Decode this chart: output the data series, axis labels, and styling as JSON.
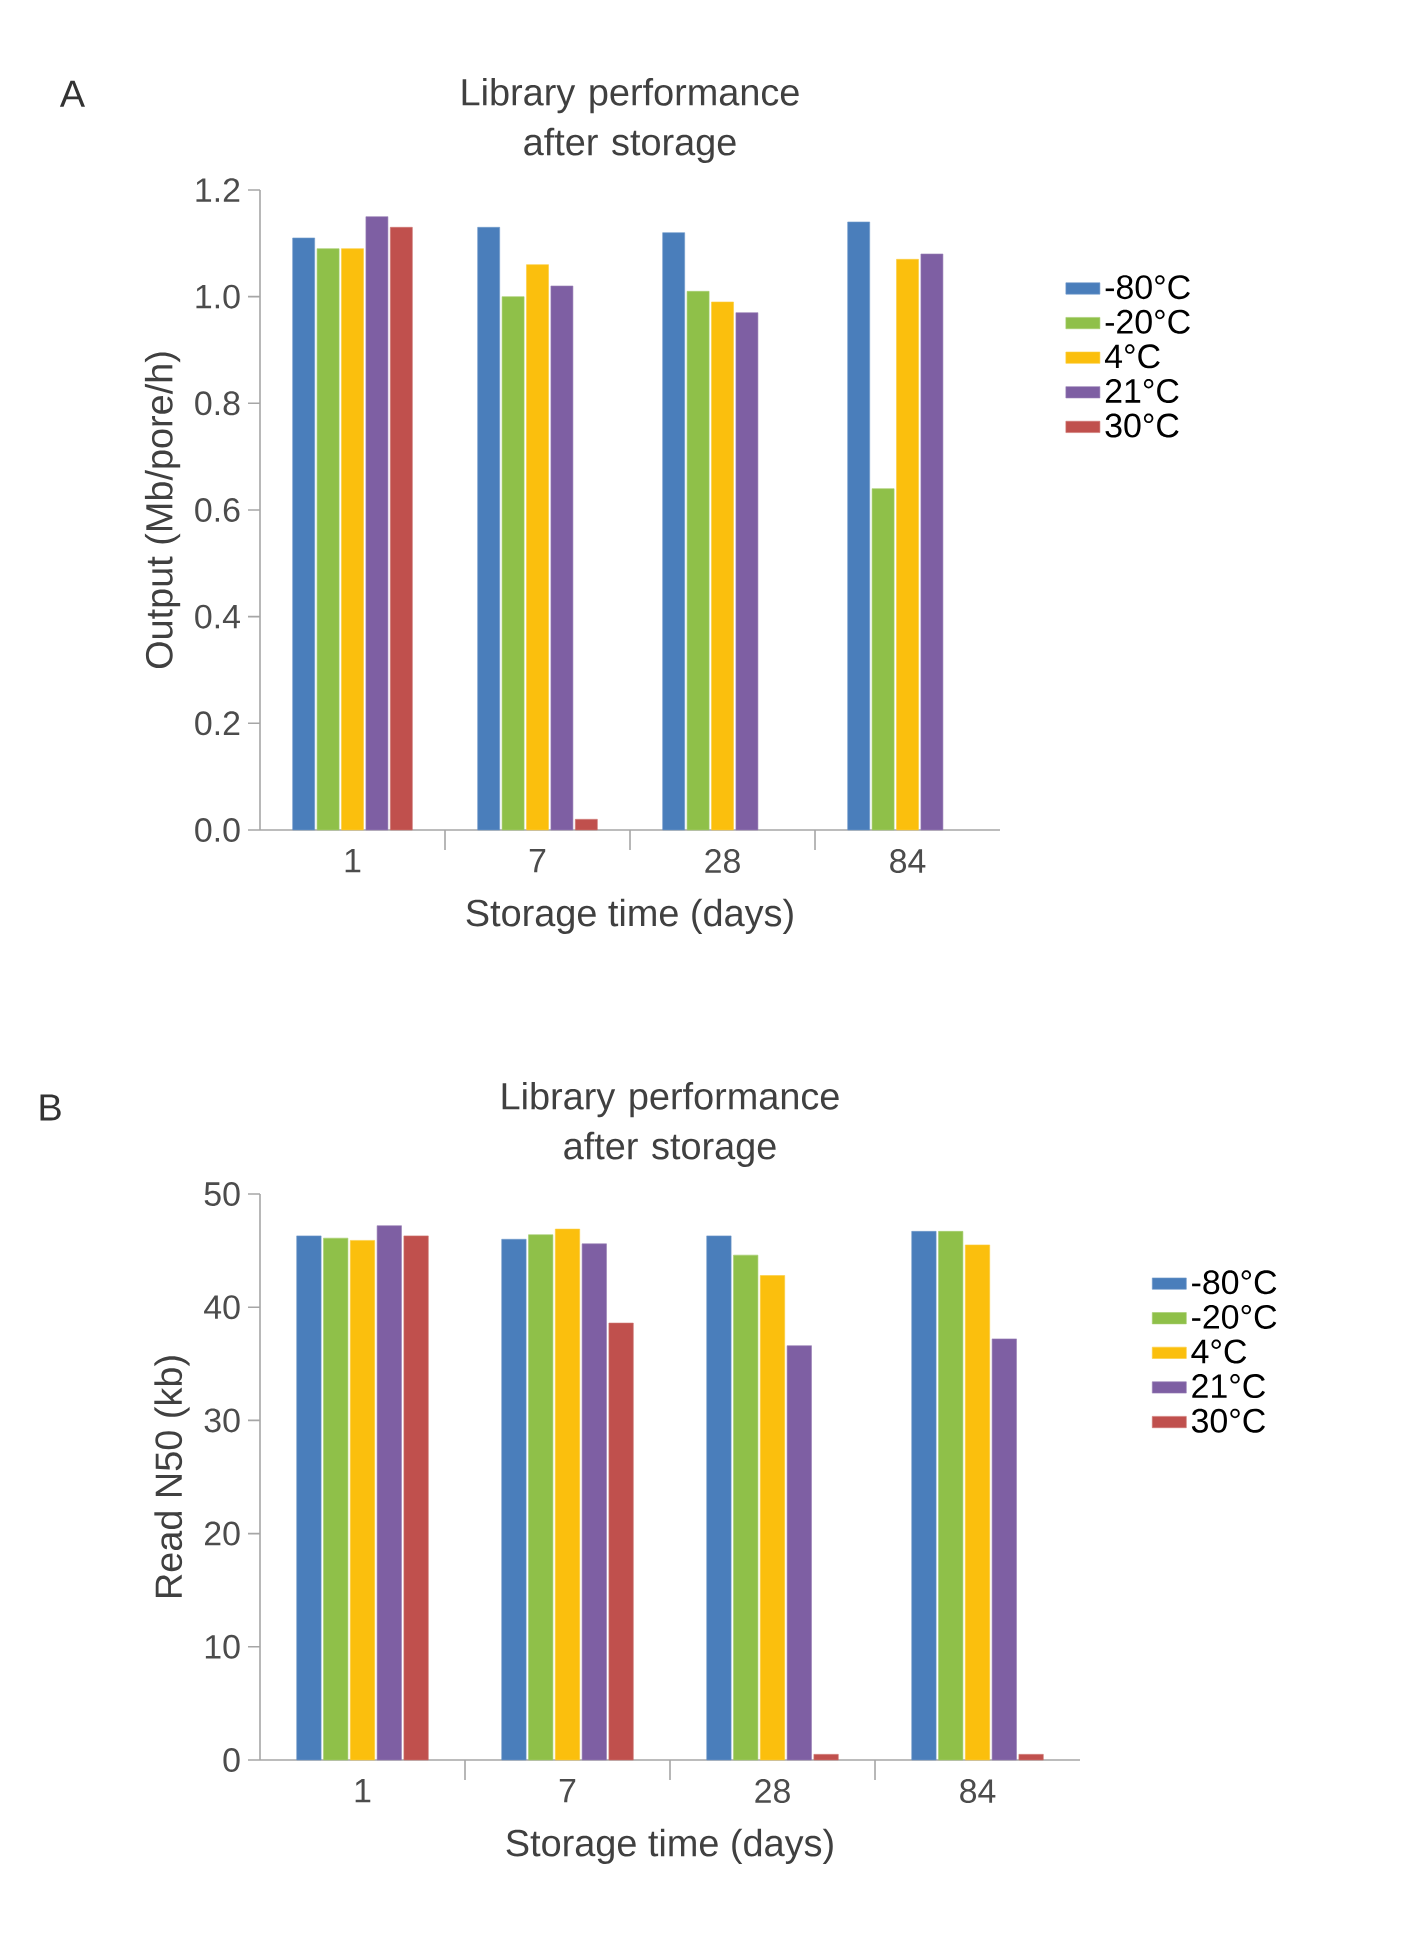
{
  "chart_data": [
    {
      "type": "bar",
      "title": "Library performance after storage",
      "xlabel": "Storage time (days)",
      "ylabel": "Output (Mb/pore/h)",
      "annotations": [
        "A"
      ],
      "categories": [
        "1",
        "7",
        "28",
        "84"
      ],
      "series": [
        {
          "name": "-80°C",
          "color": "#4a7ebb",
          "values": [
            1.11,
            1.13,
            1.12,
            1.14
          ]
        },
        {
          "name": "-20°C",
          "color": "#8fc049",
          "values": [
            1.09,
            1.0,
            1.01,
            0.64
          ]
        },
        {
          "name": "4°C",
          "color": "#fbbf0d",
          "values": [
            1.09,
            1.06,
            0.99,
            1.07
          ]
        },
        {
          "name": "21°C",
          "color": "#7e5fa3",
          "values": [
            1.15,
            1.02,
            0.97,
            1.08
          ]
        },
        {
          "name": "30°C",
          "color": "#c0504d",
          "values": [
            1.13,
            0.02,
            null,
            null
          ]
        }
      ],
      "ylim": [
        0,
        1.2
      ],
      "yticks": [
        {
          "value": 0,
          "label": "0.0"
        },
        {
          "value": 0.2,
          "label": "0.2"
        },
        {
          "value": 0.4,
          "label": "0.4"
        },
        {
          "value": 0.6,
          "label": "0.6"
        },
        {
          "value": 0.8,
          "label": "0.8"
        },
        {
          "value": 1.0,
          "label": "1.0"
        },
        {
          "value": 1.2,
          "label": "1.2"
        }
      ],
      "legend": "right"
    },
    {
      "type": "bar",
      "title": "Library performance after storage",
      "xlabel": "Storage time (days)",
      "ylabel": "Read N50 (kb)",
      "annotations": [
        "B"
      ],
      "categories": [
        "1",
        "7",
        "28",
        "84"
      ],
      "series": [
        {
          "name": "-80°C",
          "color": "#4a7ebb",
          "values": [
            46.3,
            46.0,
            46.3,
            46.7
          ]
        },
        {
          "name": "-20°C",
          "color": "#8fc049",
          "values": [
            46.1,
            46.4,
            44.6,
            46.7
          ]
        },
        {
          "name": "4°C",
          "color": "#fbbf0d",
          "values": [
            45.9,
            46.9,
            42.8,
            45.5
          ]
        },
        {
          "name": "21°C",
          "color": "#7e5fa3",
          "values": [
            47.2,
            45.6,
            36.6,
            37.2
          ]
        },
        {
          "name": "30°C",
          "color": "#c0504d",
          "values": [
            46.3,
            38.6,
            0.5,
            0.5
          ]
        }
      ],
      "ylim": [
        0,
        50
      ],
      "yticks": [
        0,
        10,
        20,
        30,
        40,
        50
      ],
      "legend": "right"
    }
  ]
}
